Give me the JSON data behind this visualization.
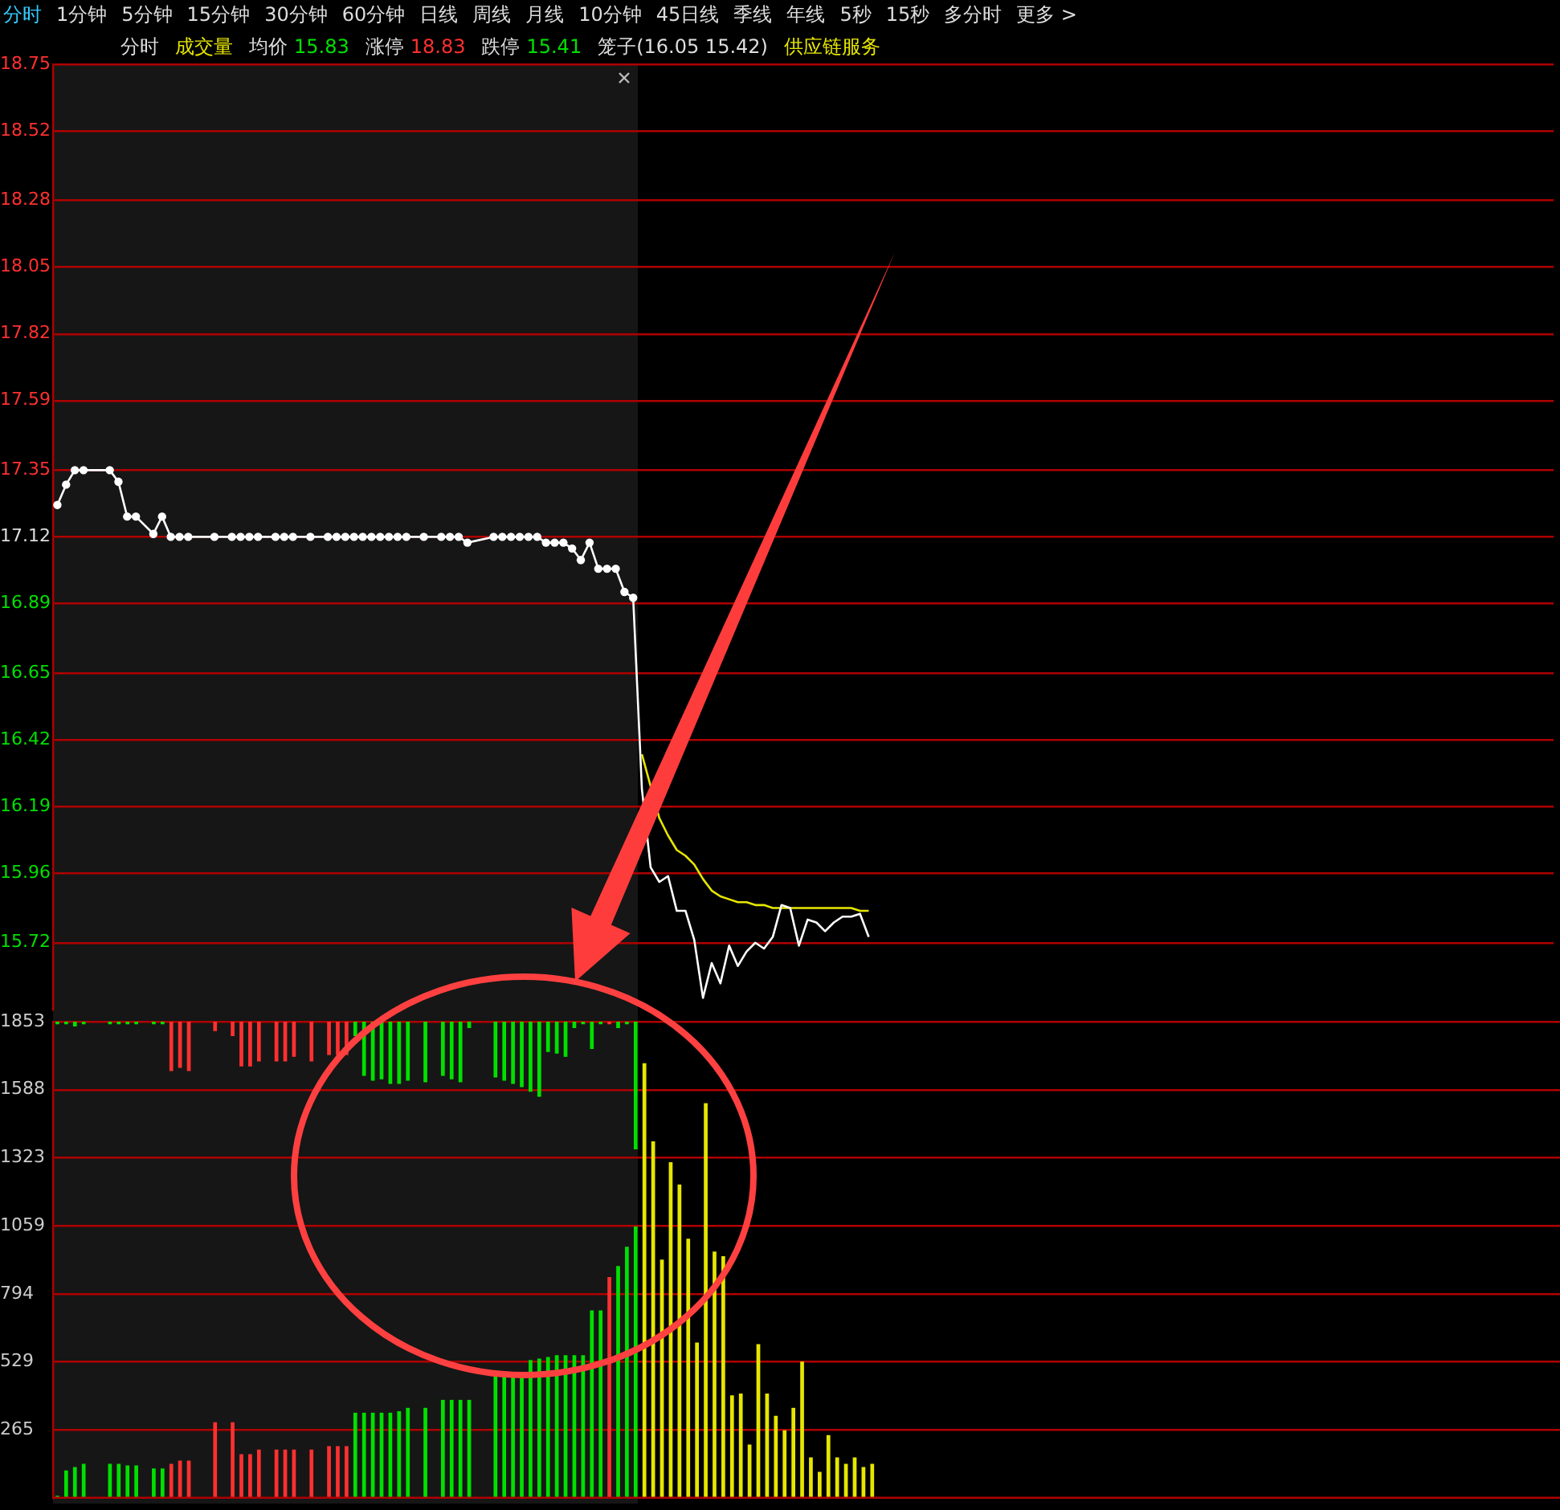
{
  "chart_data": [
    {
      "type": "line",
      "annotations": [
        "分时",
        "1分钟",
        "5分钟",
        "15分钟",
        "30分钟",
        "60分钟",
        "日线",
        "周线",
        "月线",
        "10分钟",
        "45日线",
        "季线",
        "年线",
        "5秒",
        "15秒",
        "多分时",
        "更多 >",
        "分时",
        "成交量",
        "均价",
        "15.83",
        "涨停",
        "18.83",
        "跌停",
        "15.41",
        "笼子(16.05 15.42)",
        "供应链服务"
      ],
      "categories": [
        null,
        null,
        null,
        null,
        null,
        null,
        null,
        null,
        null,
        null,
        null,
        null,
        null,
        null,
        null,
        null,
        null,
        null,
        null,
        null,
        null,
        null,
        null,
        null,
        null,
        null,
        null,
        null,
        null,
        null,
        null,
        null,
        null,
        null,
        null,
        null,
        null,
        null,
        null,
        null,
        null,
        null,
        null,
        null,
        null,
        null,
        null,
        null,
        null,
        null,
        null,
        null,
        null,
        null,
        null,
        null,
        null,
        null,
        null,
        null,
        null,
        null,
        null,
        null,
        null,
        null,
        null,
        null,
        null,
        null,
        null,
        null,
        null,
        null,
        null,
        null,
        null,
        null,
        null,
        null,
        null,
        null,
        null,
        null,
        null,
        null,
        null,
        null,
        null,
        null,
        null,
        null,
        null,
        null,
        null,
        null,
        null,
        null,
        null,
        null,
        null,
        null,
        null,
        null,
        null,
        null,
        null,
        null,
        null,
        null,
        null,
        null,
        null,
        null,
        null,
        null,
        null,
        null,
        null,
        null,
        null,
        null,
        null,
        null,
        null,
        null,
        null,
        null,
        null,
        null,
        null,
        null,
        null,
        null,
        null,
        null,
        null,
        null,
        null,
        null,
        null,
        null,
        null,
        null,
        null,
        null,
        null,
        null,
        null,
        null,
        null,
        null,
        null,
        null,
        null,
        null,
        null,
        null,
        null,
        null,
        null,
        null,
        null,
        null,
        null,
        null,
        null,
        null,
        null,
        null,
        null,
        null
      ],
      "series": [
        {
          "color": "#ffffff",
          "marker": "circle",
          "values": [
            17.23,
            17.3,
            17.35,
            17.35,
            null,
            null,
            17.35,
            17.31,
            17.19,
            17.19,
            null,
            17.13,
            17.19,
            17.12,
            17.12,
            17.12,
            null,
            null,
            17.12,
            null,
            17.12,
            17.12,
            17.12,
            17.12,
            null,
            17.12,
            17.12,
            17.12,
            null,
            17.12,
            null,
            17.12,
            17.12,
            17.12,
            17.12,
            17.12,
            17.12,
            17.12,
            17.12,
            17.12,
            17.12,
            null,
            17.12,
            null,
            17.12,
            17.12,
            17.12,
            17.1,
            null,
            null,
            17.12,
            17.12,
            17.12,
            17.12,
            17.12,
            17.12,
            17.1,
            17.1,
            17.1,
            17.08,
            17.04,
            17.1,
            17.01,
            17.01,
            17.01,
            16.93,
            16.91,
            null,
            null,
            null,
            null,
            null,
            null,
            null,
            null,
            null,
            null,
            null,
            null,
            null,
            null,
            null,
            null,
            null,
            null,
            null,
            null,
            null,
            null,
            null,
            null,
            null,
            null,
            null,
            null,
            null,
            null,
            null,
            null,
            null,
            null,
            null,
            null,
            null,
            null,
            null,
            null,
            null,
            null,
            null,
            null,
            null,
            null,
            null,
            null,
            null,
            null,
            null,
            null,
            null,
            null,
            null,
            null,
            null,
            null,
            null,
            null,
            null,
            null,
            null,
            null,
            null,
            null,
            null,
            null,
            null,
            null,
            null,
            null,
            null,
            null,
            null,
            null,
            null,
            null,
            null,
            null,
            null,
            null,
            null,
            null,
            null,
            null,
            null,
            null,
            null,
            null,
            null,
            null,
            null,
            null,
            null,
            null,
            null,
            null,
            null,
            null,
            null,
            null,
            null,
            null,
            null
          ]
        },
        {
          "color": "#ffffff",
          "values": [
            null,
            null,
            null,
            null,
            null,
            null,
            null,
            null,
            null,
            null,
            null,
            null,
            null,
            null,
            null,
            null,
            null,
            null,
            null,
            null,
            null,
            null,
            null,
            null,
            null,
            null,
            null,
            null,
            null,
            null,
            null,
            null,
            null,
            null,
            null,
            null,
            null,
            null,
            null,
            null,
            null,
            null,
            null,
            null,
            null,
            null,
            null,
            null,
            null,
            null,
            null,
            null,
            null,
            null,
            null,
            null,
            null,
            null,
            null,
            null,
            null,
            null,
            null,
            null,
            null,
            null,
            16.91,
            16.25,
            15.98,
            15.93,
            15.95,
            15.83,
            15.83,
            15.73,
            15.53,
            15.65,
            15.58,
            15.71,
            15.64,
            15.69,
            15.72,
            15.7,
            15.74,
            15.85,
            15.84,
            15.71,
            15.8,
            15.79,
            15.76,
            15.79,
            15.81,
            15.81,
            15.82,
            15.74,
            null,
            null,
            null,
            null,
            null,
            null,
            null,
            null,
            null,
            null,
            null,
            null,
            null,
            null,
            null,
            null,
            null,
            null,
            null,
            null,
            null,
            null,
            null,
            null,
            null,
            null,
            null,
            null,
            null,
            null,
            null,
            null,
            null,
            null,
            null,
            null,
            null,
            null,
            null,
            null,
            null,
            null,
            null,
            null,
            null,
            null,
            null,
            null,
            null,
            null,
            null,
            null,
            null,
            null,
            null,
            null,
            null,
            null,
            null,
            null,
            null,
            null,
            null,
            null,
            null,
            null,
            null,
            null,
            null,
            null,
            null,
            null,
            null,
            null,
            null,
            null,
            null,
            null
          ]
        },
        {
          "color": "#e6e600",
          "values": [
            null,
            null,
            null,
            null,
            null,
            null,
            null,
            null,
            null,
            null,
            null,
            null,
            null,
            null,
            null,
            null,
            null,
            null,
            null,
            null,
            null,
            null,
            null,
            null,
            null,
            null,
            null,
            null,
            null,
            null,
            null,
            null,
            null,
            null,
            null,
            null,
            null,
            null,
            null,
            null,
            null,
            null,
            null,
            null,
            null,
            null,
            null,
            null,
            null,
            null,
            null,
            null,
            null,
            null,
            null,
            null,
            null,
            null,
            null,
            null,
            null,
            null,
            null,
            null,
            null,
            null,
            null,
            16.37,
            null,
            16.15,
            16.09,
            16.04,
            16.02,
            15.99,
            15.94,
            15.9,
            15.88,
            15.87,
            15.86,
            15.86,
            15.85,
            15.85,
            15.84,
            15.84,
            15.84,
            15.84,
            15.84,
            15.84,
            15.84,
            15.84,
            15.84,
            15.84,
            15.83,
            15.83,
            null,
            null,
            null,
            null,
            null,
            null,
            null,
            null,
            null,
            null,
            null,
            null,
            null,
            null,
            null,
            null,
            null,
            null,
            null,
            null,
            null,
            null,
            null,
            null,
            null,
            null,
            null,
            null,
            null,
            null,
            null,
            null,
            null,
            null,
            null,
            null,
            null,
            null,
            null,
            null,
            null,
            null,
            null,
            null,
            null,
            null,
            null,
            null,
            null,
            null,
            null,
            null,
            null,
            null,
            null,
            null,
            null,
            null,
            null,
            null,
            null,
            null,
            null,
            null,
            null,
            null,
            null,
            null,
            null,
            null,
            null,
            null,
            null,
            null,
            null,
            null,
            null,
            null
          ]
        }
      ],
      "ylim": [
        15.49,
        18.75
      ],
      "yticks": [
        18.75,
        18.52,
        18.28,
        18.05,
        17.82,
        17.59,
        17.35,
        17.12,
        16.89,
        16.65,
        16.42,
        16.19,
        15.96,
        15.72
      ],
      "grid": "y",
      "tick_labels": "y"
    },
    {
      "type": "bar",
      "categories": [
        null,
        null,
        null,
        null,
        null,
        null,
        null,
        null,
        null,
        null,
        null,
        null,
        null,
        null,
        null,
        null,
        null,
        null,
        null,
        null,
        null,
        null,
        null,
        null,
        null,
        null,
        null,
        null,
        null,
        null,
        null,
        null,
        null,
        null,
        null,
        null,
        null,
        null,
        null,
        null,
        null,
        null,
        null,
        null,
        null,
        null,
        null,
        null,
        null,
        null,
        null,
        null,
        null,
        null,
        null,
        null,
        null,
        null,
        null,
        null,
        null,
        null,
        null,
        null,
        null,
        null,
        null,
        null,
        null,
        null,
        null,
        null,
        null,
        null,
        null,
        null,
        null,
        null,
        null,
        null,
        null,
        null,
        null,
        null,
        null,
        null,
        null,
        null,
        null,
        null,
        null,
        null,
        null,
        null,
        null,
        null,
        null,
        null,
        null,
        null,
        null,
        null,
        null,
        null,
        null,
        null,
        null,
        null,
        null,
        null,
        null,
        null,
        null,
        null,
        null,
        null,
        null,
        null,
        null,
        null,
        null,
        null,
        null,
        null,
        null,
        null,
        null,
        null,
        null,
        null,
        null,
        null,
        null,
        null,
        null,
        null,
        null,
        null,
        null,
        null,
        null,
        null,
        null,
        null,
        null,
        null,
        null,
        null,
        null,
        null,
        null,
        null,
        null,
        null,
        null,
        null,
        null,
        null,
        null,
        null,
        null,
        null,
        null,
        null,
        null,
        null,
        null,
        null,
        null,
        null,
        null,
        null
      ],
      "series": [
        {
          "values": [
            6,
            104,
            118,
            130,
            null,
            null,
            130,
            130,
            124,
            124,
            null,
            112,
            112,
            130,
            143,
            143,
            null,
            null,
            292,
            null,
            292,
            168,
            168,
            186,
            null,
            186,
            186,
            186,
            null,
            186,
            null,
            199,
            199,
            199,
            329,
            329,
            329,
            329,
            329,
            335,
            348,
            null,
            348,
            null,
            379,
            379,
            379,
            379,
            null,
            null,
            478,
            478,
            478,
            478,
            534,
            540,
            546,
            553,
            553,
            553,
            553,
            727,
            727,
            857,
            900,
            975,
            1054,
            1689,
            1385,
            925,
            1304,
            1217,
            1006,
            602,
            1534,
            956,
            938,
            397,
            404,
            205,
            596,
            404,
            317,
            261,
            348,
            528,
            155,
            99,
            242,
            155,
            130,
            155,
            118,
            130,
            null,
            null,
            null,
            null,
            null,
            null,
            null,
            null,
            null,
            null,
            null,
            null,
            null,
            null,
            null,
            null,
            null,
            null,
            null,
            null,
            null,
            null,
            null,
            null,
            null,
            null,
            null,
            null,
            null,
            null,
            null,
            null,
            null,
            null,
            null,
            null,
            null,
            null,
            null,
            null,
            null,
            null,
            null,
            null,
            null,
            null,
            null,
            null,
            null,
            null,
            null,
            null,
            null,
            null,
            null,
            null,
            null,
            null,
            null,
            null,
            null,
            null,
            null,
            null,
            null,
            null,
            null,
            null,
            null,
            null,
            null,
            null,
            null,
            null,
            null,
            null,
            null,
            null
          ],
          "colors": [
            "#00e000",
            "#00e000",
            "#00e000",
            "#00e000",
            null,
            null,
            "#00e000",
            "#00e000",
            "#00e000",
            "#00e000",
            null,
            "#00e000",
            "#00e000",
            "#ff3030",
            "#ff3030",
            "#ff3030",
            null,
            null,
            "#ff3030",
            null,
            "#ff3030",
            "#ff3030",
            "#ff3030",
            "#ff3030",
            null,
            "#ff3030",
            "#ff3030",
            "#ff3030",
            null,
            "#ff3030",
            null,
            "#ff3030",
            "#ff3030",
            "#ff3030",
            "#00e000",
            "#00e000",
            "#00e000",
            "#00e000",
            "#00e000",
            "#00e000",
            "#00e000",
            null,
            "#00e000",
            null,
            "#00e000",
            "#00e000",
            "#00e000",
            "#00e000",
            null,
            null,
            "#00e000",
            "#00e000",
            "#00e000",
            "#00e000",
            "#00e000",
            "#00e000",
            "#00e000",
            "#00e000",
            "#00e000",
            "#00e000",
            "#00e000",
            "#00e000",
            "#00e000",
            "#ff3030",
            "#00e000",
            "#00e000",
            "#00e000",
            "#e6e600",
            "#e6e600",
            "#e6e600",
            "#e6e600",
            "#e6e600",
            "#e6e600",
            "#e6e600",
            "#e6e600",
            "#e6e600",
            "#e6e600",
            "#e6e600",
            "#e6e600",
            "#e6e600",
            "#e6e600",
            "#e6e600",
            "#e6e600",
            "#e6e600",
            "#e6e600",
            "#e6e600",
            "#e6e600",
            "#e6e600",
            "#e6e600",
            "#e6e600",
            "#e6e600",
            "#e6e600",
            "#e6e600",
            "#e6e600",
            null,
            null,
            null,
            null,
            null,
            null,
            null,
            null,
            null,
            null,
            null,
            null,
            null,
            null,
            null,
            null,
            null,
            null,
            null,
            null,
            null,
            null,
            null,
            null,
            null,
            null,
            null,
            null,
            null,
            null,
            null,
            null,
            null,
            null,
            null,
            null,
            null,
            null,
            null,
            null,
            null,
            null,
            null,
            null,
            null,
            null,
            null,
            null,
            null,
            null,
            null,
            null,
            null,
            null,
            null,
            null,
            null,
            null,
            null,
            null,
            null,
            null,
            null,
            null,
            null,
            null,
            null,
            null,
            null,
            null,
            null,
            null,
            null,
            null,
            null,
            null,
            null,
            null
          ]
        },
        {
          "values": [
            -8,
            -8,
            -17,
            -8,
            null,
            null,
            -8,
            -8,
            -8,
            -8,
            null,
            -8,
            -8,
            -190,
            -178,
            -190,
            null,
            null,
            -35,
            null,
            -54,
            -172,
            -172,
            -153,
            null,
            -153,
            -153,
            -135,
            null,
            -153,
            null,
            -128,
            -128,
            -128,
            -54,
            -209,
            -228,
            -222,
            -240,
            -240,
            -228,
            null,
            -234,
            null,
            -209,
            -222,
            -234,
            -23,
            null,
            null,
            -215,
            -228,
            -240,
            -253,
            -271,
            -290,
            -116,
            -122,
            -135,
            -23,
            -8,
            -104,
            -8,
            -8,
            -23,
            -8,
            -495,
            null,
            null,
            null,
            null,
            null,
            null,
            null,
            null,
            null,
            null,
            null,
            null,
            null,
            null,
            null,
            null,
            null,
            null,
            null,
            null,
            null,
            null,
            null,
            null,
            null,
            null,
            null,
            null,
            null,
            null,
            null,
            null,
            null,
            null,
            null,
            null,
            null,
            null,
            null,
            null,
            null,
            null,
            null,
            null,
            null,
            null,
            null,
            null,
            null,
            null,
            null,
            null,
            null,
            null,
            null,
            null,
            null,
            null,
            null,
            null,
            null,
            null,
            null,
            null,
            null,
            null,
            null,
            null,
            null,
            null,
            null,
            null,
            null,
            null,
            null,
            null,
            null,
            null,
            null,
            null,
            null,
            null,
            null,
            null,
            null,
            null,
            null,
            null,
            null,
            null,
            null,
            null,
            null,
            null,
            null,
            null,
            null,
            null,
            null,
            null,
            null,
            null,
            null,
            null,
            null
          ],
          "base": [
            1853,
            1853,
            1853,
            1853,
            null,
            null,
            1853,
            1853,
            1853,
            1853,
            null,
            1853,
            1853,
            1853,
            1853,
            1853,
            null,
            null,
            1853,
            null,
            1853,
            1853,
            1853,
            1853,
            null,
            1853,
            1853,
            1853,
            null,
            1853,
            null,
            1853,
            1853,
            1853,
            1853,
            1853,
            1853,
            1853,
            1853,
            1853,
            1853,
            null,
            1853,
            null,
            1853,
            1853,
            1853,
            1853,
            null,
            null,
            1853,
            1853,
            1853,
            1853,
            1853,
            1853,
            1853,
            1853,
            1853,
            1853,
            1853,
            1853,
            1853,
            1853,
            1853,
            1853,
            1853,
            null,
            null,
            null,
            null,
            null,
            null,
            null,
            null,
            null,
            null,
            null,
            null,
            null,
            null,
            null,
            null,
            null,
            null,
            null,
            null,
            null,
            null,
            null,
            null,
            null,
            null,
            null,
            null,
            null,
            null,
            null,
            null,
            null,
            null,
            null,
            null,
            null,
            null,
            null,
            null,
            null,
            null,
            null,
            null,
            null,
            null,
            null,
            null,
            null,
            null,
            null,
            null,
            null,
            null,
            null,
            null,
            null,
            null,
            null,
            null,
            null,
            null,
            null,
            null,
            null,
            null,
            null,
            null,
            null,
            null,
            null,
            null,
            null,
            null,
            null,
            null,
            null,
            null,
            null,
            null,
            null,
            null,
            null,
            null,
            null,
            null,
            null,
            null,
            null,
            null,
            null,
            null,
            null,
            null,
            null,
            null,
            null,
            null,
            null,
            null,
            null,
            null,
            null,
            null,
            null
          ],
          "colors": [
            "#00e000",
            "#00e000",
            "#00e000",
            "#00e000",
            null,
            null,
            "#00e000",
            "#00e000",
            "#00e000",
            "#00e000",
            null,
            "#00e000",
            "#00e000",
            "#ff3030",
            "#ff3030",
            "#ff3030",
            null,
            null,
            "#ff3030",
            null,
            "#ff3030",
            "#ff3030",
            "#ff3030",
            "#ff3030",
            null,
            "#ff3030",
            "#ff3030",
            "#ff3030",
            null,
            "#ff3030",
            null,
            "#ff3030",
            "#ff3030",
            "#ff3030",
            "#00e000",
            "#00e000",
            "#00e000",
            "#00e000",
            "#00e000",
            "#00e000",
            "#00e000",
            null,
            "#00e000",
            null,
            "#00e000",
            "#00e000",
            "#00e000",
            "#00e000",
            null,
            null,
            "#00e000",
            "#00e000",
            "#00e000",
            "#00e000",
            "#00e000",
            "#00e000",
            "#00e000",
            "#00e000",
            "#00e000",
            "#00e000",
            "#00e000",
            "#00e000",
            "#00e000",
            "#ff3030",
            "#00e000",
            "#00e000",
            "#00e000",
            null,
            null,
            null,
            null,
            null,
            null,
            null,
            null,
            null,
            null,
            null,
            null,
            null,
            null,
            null,
            null,
            null,
            null,
            null,
            null,
            null,
            null,
            null,
            null,
            null,
            null,
            null,
            null,
            null,
            null,
            null,
            null,
            null,
            null,
            null,
            null,
            null,
            null,
            null,
            null,
            null,
            null,
            null,
            null,
            null,
            null,
            null,
            null,
            null,
            null,
            null,
            null,
            null,
            null,
            null,
            null,
            null,
            null,
            null,
            null,
            null,
            null,
            null,
            null,
            null,
            null,
            null,
            null,
            null,
            null,
            null,
            null,
            null,
            null,
            null,
            null,
            null,
            null,
            null,
            null,
            null,
            null,
            null,
            null,
            null,
            null,
            null,
            null,
            null,
            null,
            null,
            null,
            null,
            null,
            null,
            null,
            null,
            null,
            null,
            null,
            null,
            null,
            null,
            null,
            null
          ]
        }
      ],
      "ylim": [
        0,
        1853
      ],
      "yticks": [
        1853,
        1588,
        1323,
        1059,
        794,
        529,
        265
      ],
      "grid": "y",
      "tick_labels": "y"
    }
  ]
}
